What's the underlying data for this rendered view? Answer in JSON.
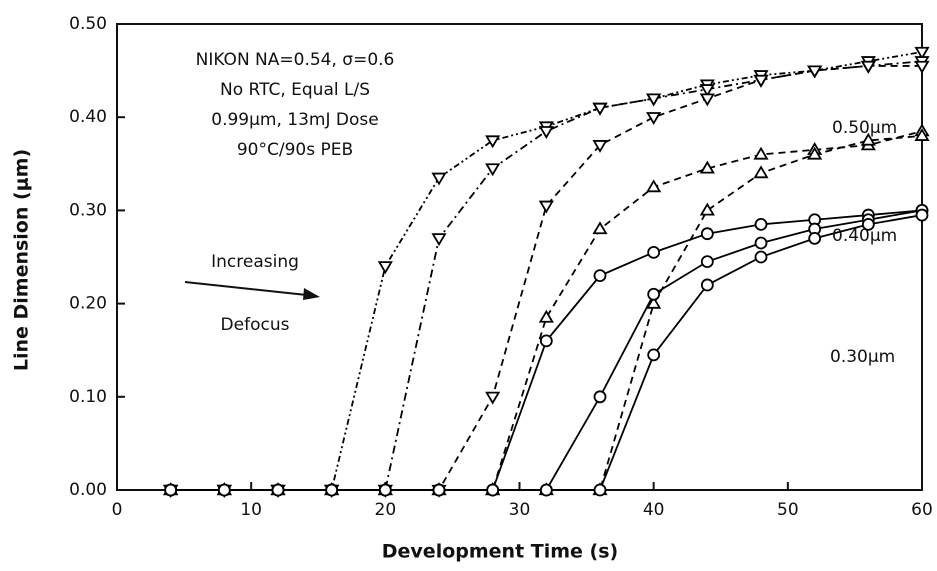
{
  "chart_data": {
    "type": "line",
    "xlabel": "Development Time (s)",
    "ylabel": "Line Dimension (μm)",
    "x": [
      4,
      8,
      12,
      16,
      20,
      24,
      28,
      32,
      36,
      40,
      44,
      48,
      52,
      56,
      60
    ],
    "series": [
      {
        "marker": "triangle-down",
        "dash": "dash-dot-dot",
        "color": "#000000",
        "values": [
          0,
          0,
          0,
          0,
          0.24,
          0.335,
          0.375,
          0.39,
          0.41,
          0.42,
          0.435,
          0.445,
          0.45,
          0.46,
          0.47
        ]
      },
      {
        "marker": "triangle-down",
        "dash": "dash-dot",
        "color": "#000000",
        "values": [
          0,
          0,
          0,
          0,
          0,
          0.27,
          0.345,
          0.385,
          0.41,
          0.42,
          0.43,
          0.44,
          0.45,
          0.455,
          0.46
        ]
      },
      {
        "marker": "triangle-down",
        "dash": "dash",
        "color": "#000000",
        "values": [
          0,
          0,
          0,
          0,
          0,
          0,
          0.1,
          0.305,
          0.37,
          0.4,
          0.42,
          0.44,
          0.45,
          0.455,
          0.455
        ]
      },
      {
        "marker": "triangle-up",
        "dash": "dash",
        "color": "#000000",
        "values": [
          0,
          0,
          0,
          0,
          0,
          0,
          0,
          0.185,
          0.28,
          0.325,
          0.345,
          0.36,
          0.365,
          0.37,
          0.385
        ]
      },
      {
        "marker": "triangle-up",
        "dash": "dash",
        "color": "#000000",
        "values": [
          0,
          0,
          0,
          0,
          0,
          0,
          0,
          0,
          0,
          0.2,
          0.3,
          0.34,
          0.36,
          0.375,
          0.38
        ]
      },
      {
        "marker": "circle",
        "dash": "solid",
        "color": "#000000",
        "values": [
          0,
          0,
          0,
          0,
          0,
          0,
          0,
          0.16,
          0.23,
          0.255,
          0.275,
          0.285,
          0.29,
          0.295,
          0.3
        ]
      },
      {
        "marker": "circle",
        "dash": "solid",
        "color": "#000000",
        "values": [
          0,
          0,
          0,
          0,
          0,
          0,
          0,
          0,
          0.1,
          0.21,
          0.245,
          0.265,
          0.28,
          0.29,
          0.3
        ]
      },
      {
        "marker": "circle",
        "dash": "solid",
        "color": "#000000",
        "values": [
          0,
          0,
          0,
          0,
          0,
          0,
          0,
          0,
          0,
          0.145,
          0.22,
          0.25,
          0.27,
          0.285,
          0.295
        ]
      }
    ],
    "xlim": [
      0,
      60
    ],
    "xticks": [
      0,
      10,
      20,
      30,
      40,
      50,
      60
    ],
    "ylim": [
      0,
      0.5
    ],
    "yticks": [
      {
        "value": 0,
        "label": "0.00"
      },
      {
        "value": 0.1,
        "label": "0.10"
      },
      {
        "value": 0.2,
        "label": "0.20"
      },
      {
        "value": 0.3,
        "label": "0.30"
      },
      {
        "value": 0.4,
        "label": "0.40"
      },
      {
        "value": 0.5,
        "label": "0.50"
      }
    ],
    "annotations": [
      "NIKON NA=0.54, σ=0.6",
      "No RTC, Equal L/S",
      "0.99μm, 13mJ Dose",
      "90°C/90s PEB",
      "Increasing",
      "Defocus",
      "0.50μm",
      "0.40μm",
      "0.30μm"
    ]
  }
}
